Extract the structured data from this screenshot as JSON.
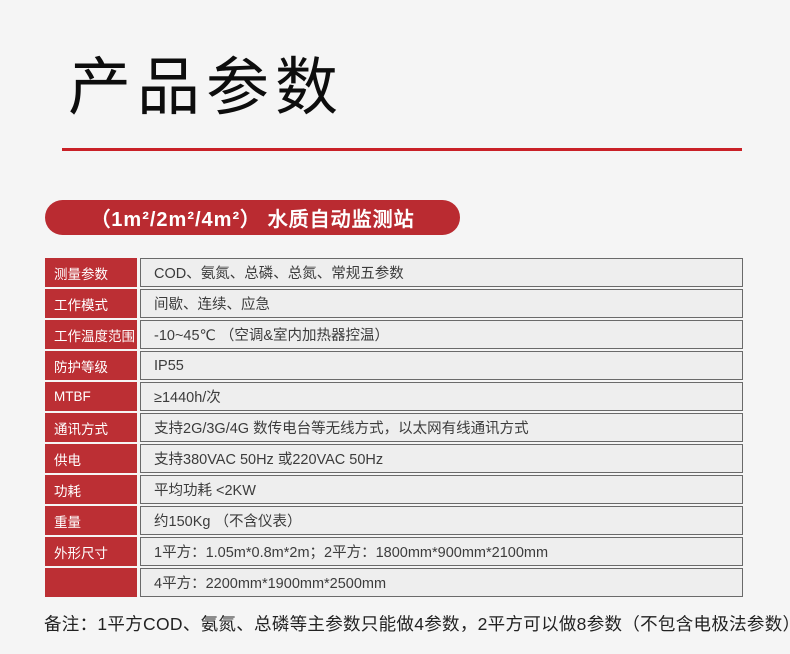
{
  "page": {
    "title": "产品参数",
    "background": "#f5f5f5",
    "accent_red": "#c92127"
  },
  "banner": {
    "label": "（1m²/2m²/4m²） 水质自动监测站",
    "background": "#ba2b31"
  },
  "spec_table": {
    "rows": [
      {
        "label": "测量参数",
        "value": "COD、氨氮、总磷、总氮、常规五参数"
      },
      {
        "label": "工作模式",
        "value": "间歇、连续、应急"
      },
      {
        "label": "工作温度范围",
        "value": "-10~45℃ （空调&室内加热器控温）"
      },
      {
        "label": "防护等级",
        "value": "IP55"
      },
      {
        "label": "MTBF",
        "value": "≥1440h/次"
      },
      {
        "label": "通讯方式",
        "value": "支持2G/3G/4G 数传电台等无线方式，以太网有线通讯方式"
      },
      {
        "label": "供电",
        "value": "支持380VAC 50Hz 或220VAC 50Hz"
      },
      {
        "label": "功耗",
        "value": "平均功耗 <2KW"
      },
      {
        "label": "重量",
        "value": "约150Kg （不含仪表）"
      },
      {
        "label": "外形尺寸",
        "value": "1平方：1.05m*0.8m*2m；2平方：1800mm*900mm*2100mm"
      },
      {
        "label": "",
        "value": "4平方：2200mm*1900mm*2500mm"
      }
    ]
  },
  "note": {
    "text": "备注：1平方COD、氨氮、总磷等主参数只能做4参数，2平方可以做8参数（不包含电极法参数）"
  }
}
